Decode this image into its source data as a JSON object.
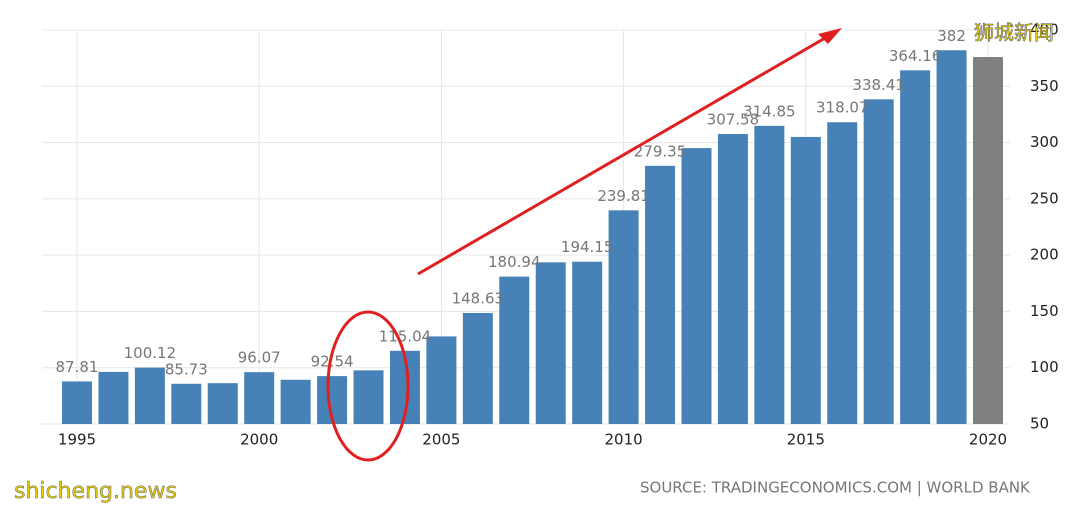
{
  "chart_data": {
    "type": "bar",
    "categories": [
      "1995",
      null,
      null,
      null,
      null,
      "2000",
      null,
      null,
      null,
      null,
      "2005",
      null,
      null,
      null,
      null,
      "2010",
      null,
      null,
      null,
      null,
      "2015",
      null,
      null,
      null,
      null,
      "2020"
    ],
    "values": [
      87.81,
      96.3,
      100.12,
      85.73,
      86.28,
      96.07,
      89.29,
      92.54,
      97.65,
      115.04,
      127.81,
      148.63,
      180.94,
      193.61,
      194.15,
      239.81,
      279.35,
      295.09,
      307.58,
      314.85,
      305,
      318.07,
      338.41,
      364.16,
      382,
      376
    ],
    "value_labels": [
      "87.81",
      null,
      "100.12",
      "85.73",
      null,
      "96.07",
      null,
      "92.54",
      null,
      "115.04",
      null,
      "148.63",
      "180.94",
      null,
      "194.15",
      "239.81",
      "279.35",
      null,
      "307.58",
      "314.85",
      null,
      "318.07",
      "338.41",
      "364.16",
      "382",
      null
    ],
    "colors": [
      "#4682b8",
      "#4682b8",
      "#4682b8",
      "#4682b8",
      "#4682b8",
      "#4682b8",
      "#4682b8",
      "#4682b8",
      "#4682b8",
      "#4682b8",
      "#4682b8",
      "#4682b8",
      "#4682b8",
      "#4682b8",
      "#4682b8",
      "#4682b8",
      "#4682b8",
      "#4682b8",
      "#4682b8",
      "#4682b8",
      "#4682b8",
      "#4682b8",
      "#4682b8",
      "#4682b8",
      "#4682b8",
      "#808080"
    ],
    "ylim": [
      50,
      400
    ],
    "yticks": [
      50,
      100,
      150,
      200,
      250,
      300,
      350,
      400
    ],
    "grid": true,
    "source": "SOURCE: TRADINGECONOMICS.COM | WORLD BANK",
    "watermark_top": "狮城新闻",
    "watermark_bottom": "shicheng.news"
  }
}
